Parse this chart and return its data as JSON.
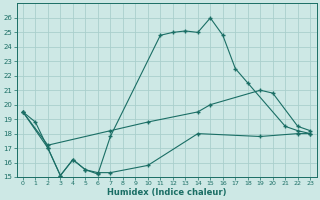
{
  "xlabel": "Humidex (Indice chaleur)",
  "bg_color": "#cde8e5",
  "grid_color": "#aacfcc",
  "line_color": "#1a6e65",
  "xlim": [
    -0.5,
    23.5
  ],
  "ylim": [
    15,
    27
  ],
  "yticks": [
    15,
    16,
    17,
    18,
    19,
    20,
    21,
    22,
    23,
    24,
    25,
    26
  ],
  "xticks": [
    0,
    1,
    2,
    3,
    4,
    5,
    6,
    7,
    8,
    9,
    10,
    11,
    12,
    13,
    14,
    15,
    16,
    17,
    18,
    19,
    20,
    21,
    22,
    23
  ],
  "series": [
    {
      "x": [
        0,
        1,
        2,
        3,
        4,
        5,
        6,
        7,
        11,
        12,
        13,
        14,
        15,
        16,
        17,
        18,
        21,
        22,
        23
      ],
      "y": [
        19.5,
        18.8,
        17.0,
        15.1,
        16.2,
        15.5,
        15.2,
        17.8,
        24.8,
        25.0,
        25.1,
        25.0,
        26.0,
        24.8,
        22.5,
        21.5,
        18.5,
        18.2,
        18.0
      ]
    },
    {
      "x": [
        0,
        2,
        7,
        10,
        14,
        15,
        19,
        20,
        22,
        23
      ],
      "y": [
        19.5,
        17.2,
        18.2,
        18.8,
        19.5,
        20.0,
        21.0,
        20.8,
        18.5,
        18.2
      ]
    },
    {
      "x": [
        0,
        2,
        3,
        4,
        5,
        6,
        7,
        10,
        14,
        19,
        22,
        23
      ],
      "y": [
        19.5,
        17.0,
        15.1,
        16.2,
        15.5,
        15.3,
        15.3,
        15.8,
        18.0,
        17.8,
        18.0,
        18.0
      ]
    }
  ]
}
